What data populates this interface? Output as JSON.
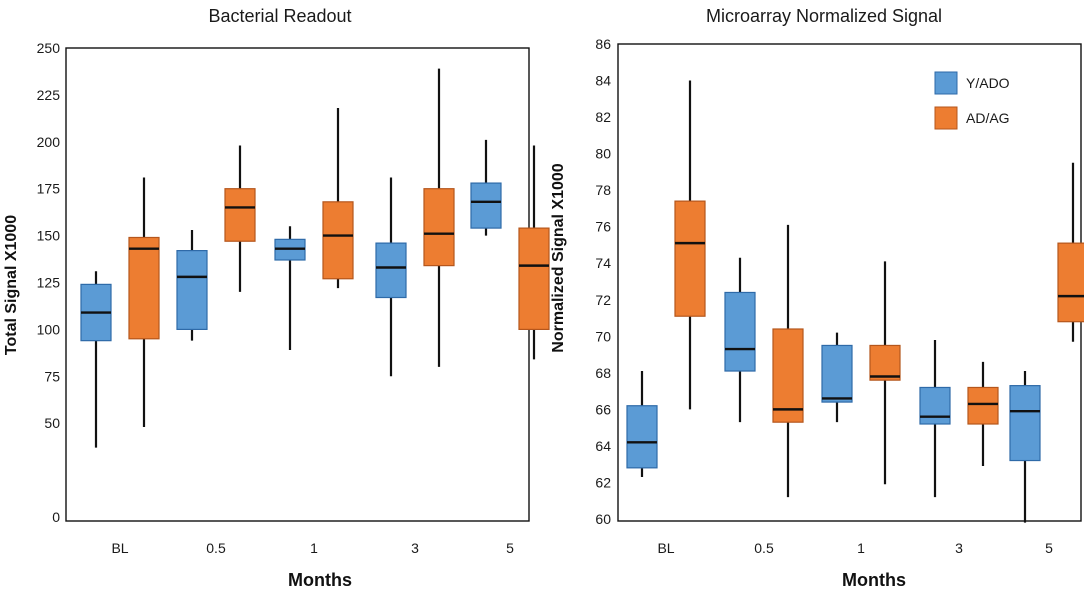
{
  "colors": {
    "series_a": "#5b9bd5",
    "series_b": "#ed7d31",
    "series_a_edge": "#2e6aa8",
    "series_b_edge": "#b5561c"
  },
  "legend": [
    "Y/ADO",
    "AD/AG"
  ],
  "chart_data": [
    {
      "type": "box",
      "title": "Bacterial Readout",
      "xlabel": "Months",
      "ylabel": "Total Signal X1000",
      "categories": [
        "BL",
        "0.5",
        "1",
        "3",
        "5"
      ],
      "ylim": [
        0,
        250
      ],
      "yticks": [
        0,
        50,
        75,
        100,
        125,
        150,
        175,
        200,
        225,
        250
      ],
      "series": [
        {
          "name": "Y/ADO",
          "boxes": [
            {
              "min": 37,
              "q1": 94,
              "median": 109,
              "q3": 124,
              "max": 131
            },
            {
              "min": 94,
              "q1": 100,
              "median": 128,
              "q3": 142,
              "max": 153
            },
            {
              "min": 89,
              "q1": 137,
              "median": 143,
              "q3": 148,
              "max": 155
            },
            {
              "min": 75,
              "q1": 117,
              "median": 133,
              "q3": 146,
              "max": 181
            },
            {
              "min": 150,
              "q1": 154,
              "median": 168,
              "q3": 178,
              "max": 201
            }
          ]
        },
        {
          "name": "AD/AG",
          "boxes": [
            {
              "min": 48,
              "q1": 95,
              "median": 143,
              "q3": 149,
              "max": 181
            },
            {
              "min": 120,
              "q1": 147,
              "median": 165,
              "q3": 175,
              "max": 198
            },
            {
              "min": 122,
              "q1": 127,
              "median": 150,
              "q3": 168,
              "max": 218
            },
            {
              "min": 80,
              "q1": 134,
              "median": 151,
              "q3": 175,
              "max": 239
            },
            {
              "min": 84,
              "q1": 100,
              "median": 134,
              "q3": 154,
              "max": 198
            }
          ]
        }
      ]
    },
    {
      "type": "box",
      "title": "Microarray Normalized Signal",
      "xlabel": "Months",
      "ylabel": "Normalized Signal X1000",
      "categories": [
        "BL",
        "0.5",
        "1",
        "3",
        "5"
      ],
      "ylim": [
        60,
        86
      ],
      "yticks": [
        60,
        62,
        64,
        66,
        68,
        70,
        72,
        74,
        76,
        78,
        80,
        82,
        84,
        86
      ],
      "series": [
        {
          "name": "Y/ADO",
          "boxes": [
            {
              "min": 62.3,
              "q1": 62.8,
              "median": 64.2,
              "q3": 66.2,
              "max": 68.1
            },
            {
              "min": 65.3,
              "q1": 68.1,
              "median": 69.3,
              "q3": 72.4,
              "max": 74.3
            },
            {
              "min": 65.3,
              "q1": 66.4,
              "median": 66.6,
              "q3": 69.5,
              "max": 70.2
            },
            {
              "min": 61.2,
              "q1": 65.2,
              "median": 65.6,
              "q3": 67.2,
              "max": 69.8
            },
            {
              "min": 59.8,
              "q1": 63.2,
              "median": 65.9,
              "q3": 67.3,
              "max": 68.1
            }
          ]
        },
        {
          "name": "AD/AG",
          "boxes": [
            {
              "min": 66.0,
              "q1": 71.1,
              "median": 75.1,
              "q3": 77.4,
              "max": 84.0
            },
            {
              "min": 61.2,
              "q1": 65.3,
              "median": 66.0,
              "q3": 70.4,
              "max": 76.1
            },
            {
              "min": 61.9,
              "q1": 67.6,
              "median": 67.8,
              "q3": 69.5,
              "max": 74.1
            },
            {
              "min": 62.9,
              "q1": 65.2,
              "median": 66.3,
              "q3": 67.2,
              "max": 68.6
            },
            {
              "min": 69.7,
              "q1": 70.8,
              "median": 72.2,
              "q3": 75.1,
              "max": 79.5
            }
          ]
        }
      ]
    }
  ]
}
